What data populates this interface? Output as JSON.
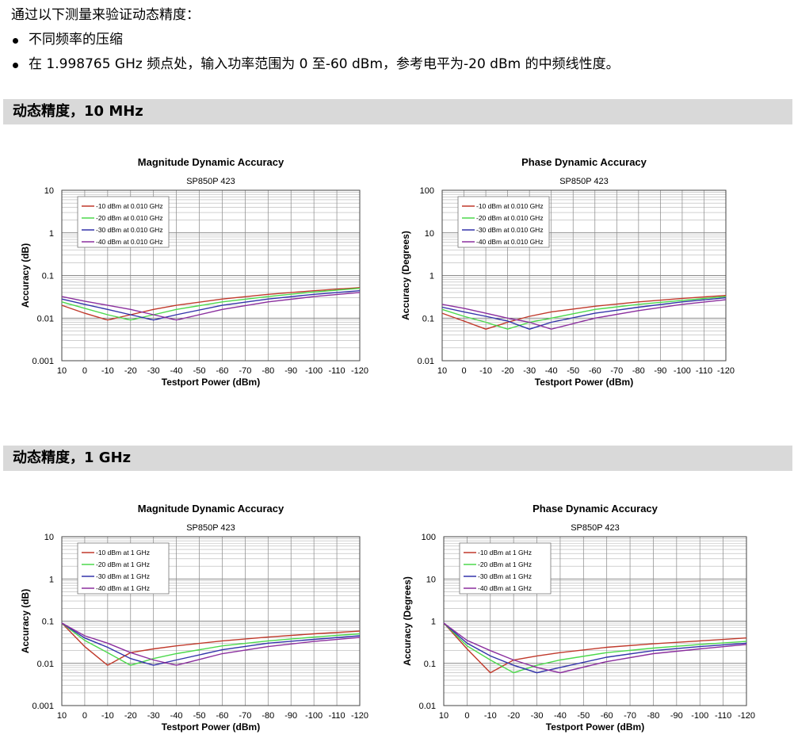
{
  "intro": {
    "heading": "通过以下测量来验证动态精度：",
    "bullets": [
      "不同频率的压缩",
      "在 1.998765 GHz 频点处，输入功率范围为 0 至-60 dBm，参考电平为-20 dBm 的中频线性度。"
    ]
  },
  "sections": [
    {
      "title": "动态精度，10 MHz"
    },
    {
      "title": "动态精度，1 GHz"
    }
  ],
  "colors": {
    "series": [
      "#c0392b",
      "#4cd94c",
      "#3333aa",
      "#8b2f9e"
    ],
    "section_bar": "#d9d9d9"
  },
  "chart_data": [
    {
      "type": "line",
      "title": "Magnitude Dynamic Accuracy",
      "subtitle": "SP850P   423",
      "xlabel": "Testport Power (dBm)",
      "ylabel": "Accuracy (dB)",
      "x_ticks": [
        10,
        0,
        -10,
        -20,
        -30,
        -40,
        -50,
        -60,
        -70,
        -80,
        -90,
        -100,
        -110,
        -120
      ],
      "xlim": [
        10,
        -120
      ],
      "ylim": [
        0.001,
        10
      ],
      "y_scale": "log",
      "y_tick_labels": [
        "10",
        "1",
        "0.1",
        "0.01",
        "0.001"
      ],
      "grid": true,
      "legend": "top-left",
      "series": [
        {
          "name": "-10 dBm at 0.010 GHz",
          "x": [
            10,
            0,
            -10,
            -20,
            -30,
            -40,
            -60,
            -80,
            -100,
            -120
          ],
          "values": [
            0.02,
            0.013,
            0.009,
            0.012,
            0.016,
            0.02,
            0.028,
            0.036,
            0.044,
            0.052
          ]
        },
        {
          "name": "-20 dBm at 0.010 GHz",
          "x": [
            10,
            0,
            -10,
            -20,
            -30,
            -40,
            -60,
            -80,
            -100,
            -120
          ],
          "values": [
            0.024,
            0.017,
            0.012,
            0.009,
            0.012,
            0.016,
            0.024,
            0.032,
            0.041,
            0.05
          ]
        },
        {
          "name": "-30 dBm at 0.010 GHz",
          "x": [
            10,
            0,
            -10,
            -20,
            -30,
            -40,
            -60,
            -80,
            -100,
            -120
          ],
          "values": [
            0.028,
            0.021,
            0.016,
            0.012,
            0.009,
            0.012,
            0.02,
            0.028,
            0.036,
            0.044
          ]
        },
        {
          "name": "-40 dBm at 0.010 GHz",
          "x": [
            10,
            0,
            -10,
            -20,
            -30,
            -40,
            -60,
            -80,
            -100,
            -120
          ],
          "values": [
            0.032,
            0.025,
            0.02,
            0.016,
            0.012,
            0.009,
            0.016,
            0.024,
            0.032,
            0.04
          ]
        }
      ]
    },
    {
      "type": "line",
      "title": "Phase Dynamic Accuracy",
      "subtitle": "SP850P   423",
      "xlabel": "Testport Power (dBm)",
      "ylabel": "Accuracy (Degrees)",
      "x_ticks": [
        10,
        0,
        -10,
        -20,
        -30,
        -40,
        -50,
        -60,
        -70,
        -80,
        -90,
        -100,
        -110,
        -120
      ],
      "xlim": [
        10,
        -120
      ],
      "ylim": [
        0.01,
        100
      ],
      "y_scale": "log",
      "y_tick_labels": [
        "100",
        "10",
        "1",
        "0.1",
        "0.01"
      ],
      "grid": true,
      "legend": "top-left",
      "series": [
        {
          "name": "-10 dBm at 0.010 GHz",
          "x": [
            10,
            0,
            -10,
            -20,
            -30,
            -40,
            -60,
            -80,
            -100,
            -120
          ],
          "values": [
            0.13,
            0.085,
            0.055,
            0.08,
            0.11,
            0.14,
            0.19,
            0.24,
            0.29,
            0.34
          ]
        },
        {
          "name": "-20 dBm at 0.010 GHz",
          "x": [
            10,
            0,
            -10,
            -20,
            -30,
            -40,
            -60,
            -80,
            -100,
            -120
          ],
          "values": [
            0.16,
            0.11,
            0.08,
            0.055,
            0.08,
            0.1,
            0.16,
            0.21,
            0.26,
            0.32
          ]
        },
        {
          "name": "-30 dBm at 0.010 GHz",
          "x": [
            10,
            0,
            -10,
            -20,
            -30,
            -40,
            -60,
            -80,
            -100,
            -120
          ],
          "values": [
            0.18,
            0.14,
            0.11,
            0.085,
            0.055,
            0.08,
            0.13,
            0.18,
            0.24,
            0.3
          ]
        },
        {
          "name": "-40 dBm at 0.010 GHz",
          "x": [
            10,
            0,
            -10,
            -20,
            -30,
            -40,
            -60,
            -80,
            -100,
            -120
          ],
          "values": [
            0.21,
            0.17,
            0.13,
            0.1,
            0.08,
            0.055,
            0.1,
            0.15,
            0.21,
            0.27
          ]
        }
      ]
    },
    {
      "type": "line",
      "title": "Magnitude Dynamic Accuracy",
      "subtitle": "SP850P   423",
      "xlabel": "Testport Power (dBm)",
      "ylabel": "Accuracy (dB)",
      "x_ticks": [
        10,
        0,
        -10,
        -20,
        -30,
        -40,
        -50,
        -60,
        -70,
        -80,
        -90,
        -100,
        -110,
        -120
      ],
      "xlim": [
        10,
        -120
      ],
      "ylim": [
        0.001,
        10
      ],
      "y_scale": "log",
      "y_tick_labels": [
        "10",
        "1",
        "0.1",
        "0.01",
        "0.001"
      ],
      "grid": true,
      "legend": "top-left",
      "series": [
        {
          "name": "-10 dBm at 1 GHz",
          "x": [
            10,
            0,
            -10,
            -20,
            -30,
            -40,
            -60,
            -80,
            -100,
            -120
          ],
          "values": [
            0.09,
            0.025,
            0.009,
            0.018,
            0.022,
            0.026,
            0.034,
            0.042,
            0.05,
            0.058
          ]
        },
        {
          "name": "-20 dBm at 1 GHz",
          "x": [
            10,
            0,
            -10,
            -20,
            -30,
            -40,
            -60,
            -80,
            -100,
            -120
          ],
          "values": [
            0.09,
            0.035,
            0.018,
            0.009,
            0.013,
            0.017,
            0.026,
            0.034,
            0.042,
            0.05
          ]
        },
        {
          "name": "-30 dBm at 1 GHz",
          "x": [
            10,
            0,
            -10,
            -20,
            -30,
            -40,
            -60,
            -80,
            -100,
            -120
          ],
          "values": [
            0.09,
            0.04,
            0.024,
            0.013,
            0.009,
            0.012,
            0.021,
            0.03,
            0.037,
            0.045
          ]
        },
        {
          "name": "-40 dBm at 1 GHz",
          "x": [
            10,
            0,
            -10,
            -20,
            -30,
            -40,
            -60,
            -80,
            -100,
            -120
          ],
          "values": [
            0.09,
            0.045,
            0.03,
            0.018,
            0.012,
            0.009,
            0.017,
            0.025,
            0.033,
            0.041
          ]
        }
      ]
    },
    {
      "type": "line",
      "title": "Phase Dynamic Accuracy",
      "subtitle": "SP850P   423",
      "xlabel": "Testport Power (dBm)",
      "ylabel": "Accuracy (Degrees)",
      "x_ticks": [
        10,
        0,
        -10,
        -20,
        -30,
        -40,
        -50,
        -60,
        -70,
        -80,
        -90,
        -100,
        -110,
        -120
      ],
      "xlim": [
        10,
        -120
      ],
      "ylim": [
        0.01,
        100
      ],
      "y_scale": "log",
      "y_tick_labels": [
        "100",
        "10",
        "1",
        "0.1",
        "0.01"
      ],
      "grid": true,
      "legend": "top-left",
      "series": [
        {
          "name": "-10 dBm at 1 GHz",
          "x": [
            10,
            0,
            -10,
            -20,
            -30,
            -40,
            -60,
            -80,
            -100,
            -120
          ],
          "values": [
            0.9,
            0.22,
            0.06,
            0.12,
            0.15,
            0.18,
            0.24,
            0.29,
            0.34,
            0.4
          ]
        },
        {
          "name": "-20 dBm at 1 GHz",
          "x": [
            10,
            0,
            -10,
            -20,
            -30,
            -40,
            -60,
            -80,
            -100,
            -120
          ],
          "values": [
            0.9,
            0.26,
            0.12,
            0.06,
            0.09,
            0.12,
            0.18,
            0.23,
            0.28,
            0.33
          ]
        },
        {
          "name": "-30 dBm at 1 GHz",
          "x": [
            10,
            0,
            -10,
            -20,
            -30,
            -40,
            -60,
            -80,
            -100,
            -120
          ],
          "values": [
            0.9,
            0.3,
            0.15,
            0.09,
            0.06,
            0.08,
            0.14,
            0.2,
            0.25,
            0.3
          ]
        },
        {
          "name": "-40 dBm at 1 GHz",
          "x": [
            10,
            0,
            -10,
            -20,
            -30,
            -40,
            -60,
            -80,
            -100,
            -120
          ],
          "values": [
            0.9,
            0.35,
            0.2,
            0.12,
            0.08,
            0.06,
            0.11,
            0.17,
            0.22,
            0.28
          ]
        }
      ]
    }
  ]
}
